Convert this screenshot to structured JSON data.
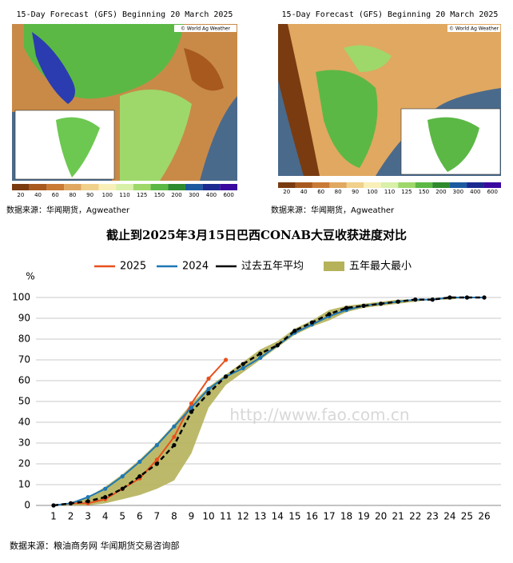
{
  "maps": [
    {
      "title": "15-Day Forecast (GFS) Beginning 20 March 2025",
      "credit": "© World Ag Weather",
      "caption": "数据来源：华闻期货，Agweather"
    },
    {
      "title": "15-Day Forecast (GFS) Beginning 20 March 2025",
      "credit": "© World Ag Weather",
      "caption": "数据来源：华闻期货，Agweather"
    }
  ],
  "colorbar": {
    "labels": [
      20,
      40,
      60,
      80,
      90,
      100,
      110,
      125,
      150,
      200,
      300,
      400,
      600
    ],
    "colors": [
      "#7a3b10",
      "#a85a1e",
      "#c97a35",
      "#e0a860",
      "#f0d08a",
      "#f8f0b8",
      "#d8f0a8",
      "#9ed86a",
      "#5cb845",
      "#2e8a2e",
      "#1e5aa0",
      "#1a2a90",
      "#3a0aa0"
    ]
  },
  "chart_data": {
    "type": "line",
    "title": "截止到2025年3月15日巴西CONAB大豆收获进度对比",
    "y_unit": "%",
    "watermark": "http://www.fao.com.cn",
    "source": "数据来源：粮油商务网  华闻期货交易咨询部",
    "categories": [
      1,
      2,
      3,
      4,
      5,
      6,
      7,
      8,
      9,
      10,
      11,
      12,
      13,
      14,
      15,
      16,
      17,
      18,
      19,
      20,
      21,
      22,
      23,
      24,
      25,
      26
    ],
    "ylim": [
      0,
      100
    ],
    "yticks": [
      0,
      10,
      20,
      30,
      40,
      50,
      60,
      70,
      80,
      90,
      100
    ],
    "grid": true,
    "series": [
      {
        "name": "2025",
        "color": "#e8501e",
        "values": [
          0,
          1,
          1,
          3,
          8,
          13,
          22,
          33,
          49,
          61,
          70,
          null,
          null,
          null,
          null,
          null,
          null,
          null,
          null,
          null,
          null,
          null,
          null,
          null,
          null,
          null
        ]
      },
      {
        "name": "2024",
        "color": "#1f77b4",
        "values": [
          0,
          1,
          4,
          8,
          14,
          21,
          29,
          38,
          47,
          56,
          62,
          66,
          71,
          77,
          83,
          87,
          91,
          94,
          96,
          97,
          98,
          99,
          99,
          100,
          100,
          100
        ]
      },
      {
        "name": "过去五年平均",
        "color": "#000000",
        "dashed": true,
        "values": [
          0,
          1,
          2,
          4,
          8,
          14,
          20,
          29,
          45,
          54,
          62,
          68,
          73,
          77,
          84,
          88,
          92,
          95,
          96,
          97,
          98,
          99,
          99,
          100,
          100,
          100
        ]
      }
    ],
    "band": {
      "name": "五年最大最小",
      "color": "#b5b25a",
      "max": [
        0,
        1,
        4,
        9,
        15,
        22,
        30,
        39,
        49,
        57,
        63,
        69,
        75,
        79,
        85,
        89,
        94,
        96,
        97,
        98,
        99,
        99,
        99,
        100,
        100,
        100
      ],
      "min": [
        0,
        0,
        0,
        1,
        3,
        5,
        8,
        12,
        25,
        47,
        58,
        64,
        70,
        76,
        82,
        86,
        89,
        93,
        95,
        96,
        97,
        98,
        99,
        99,
        100,
        100
      ]
    }
  }
}
